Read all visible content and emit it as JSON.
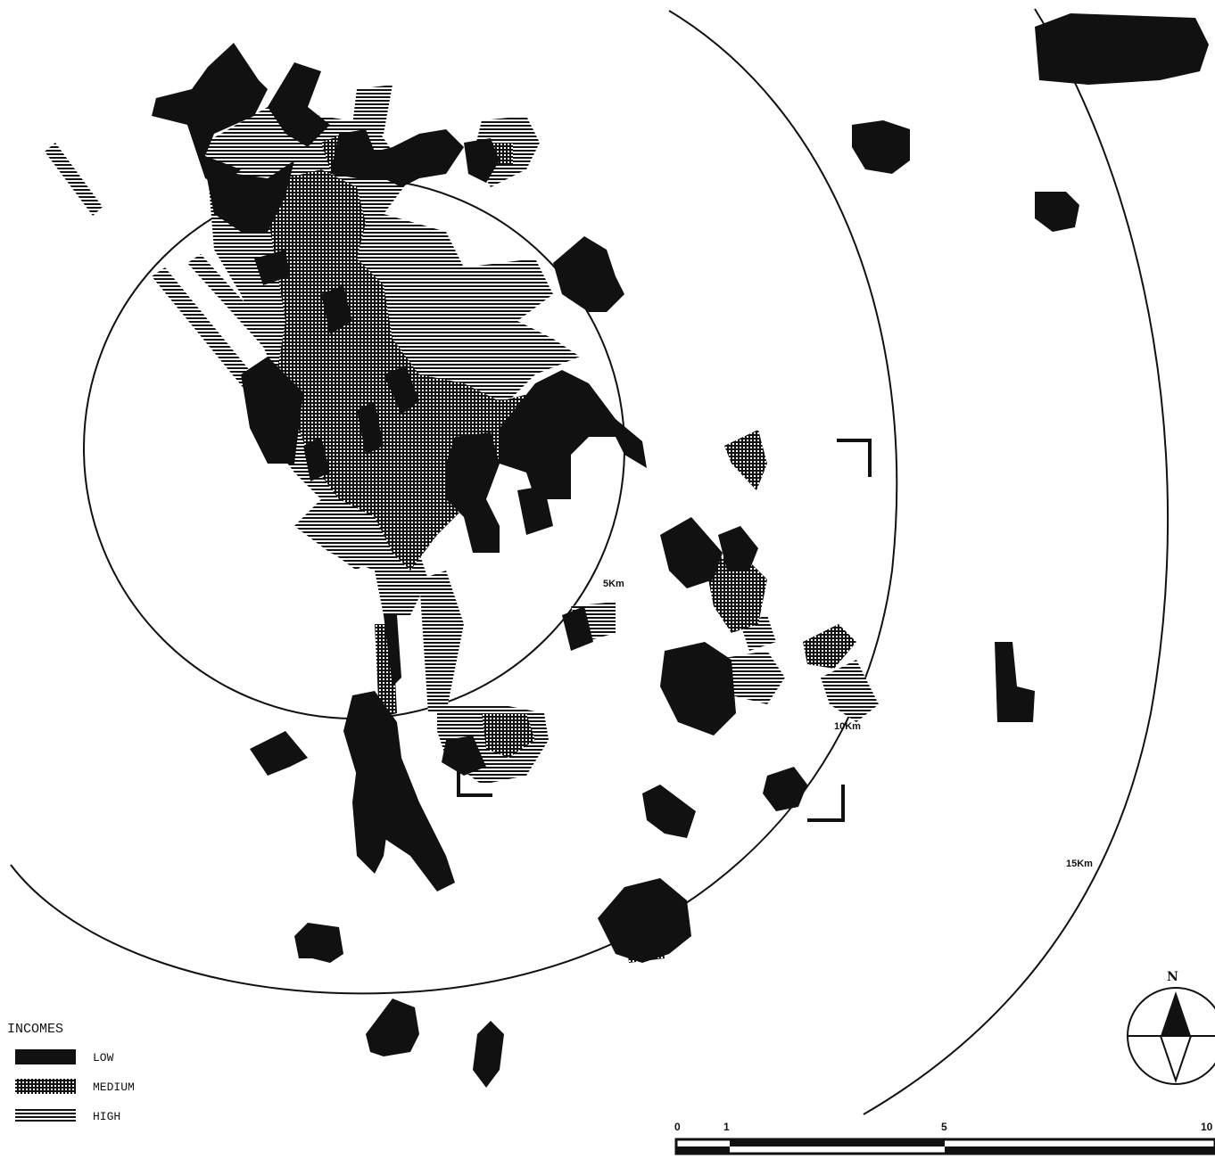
{
  "rings": [
    {
      "label": "5Km"
    },
    {
      "label": "10Km"
    },
    {
      "label": "15Km"
    }
  ],
  "legend": {
    "title": "INCOMES",
    "items": [
      {
        "label": "LOW",
        "pattern": "solid-black"
      },
      {
        "label": "MEDIUM",
        "pattern": "dot-grid"
      },
      {
        "label": "HIGH",
        "pattern": "horizontal-hatch"
      }
    ]
  },
  "north_arrow": {
    "letter": "N",
    "icon": "compass-rose-icon"
  },
  "scale_bar": {
    "ticks": [
      "0",
      "1",
      "5",
      "10"
    ]
  },
  "colors": {
    "ink": "#111111",
    "paper": "#ffffff"
  }
}
